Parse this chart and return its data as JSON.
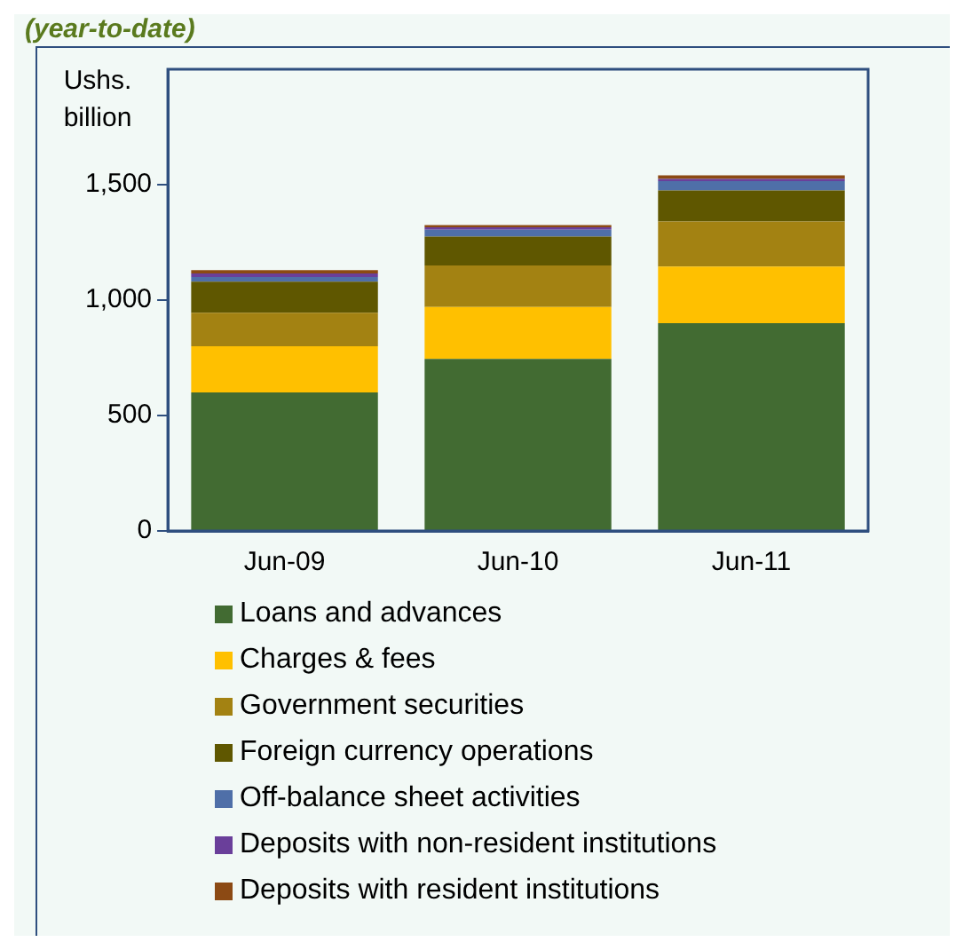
{
  "chart_data": {
    "type": "bar",
    "title": "(year-to-date)",
    "ylabel": "Ushs. billion",
    "categories": [
      "Jun-09",
      "Jun-10",
      "Jun-11"
    ],
    "stacked": true,
    "ylim": [
      0,
      2000
    ],
    "yticks": [
      0,
      {
        "value": 500,
        "label": "500"
      },
      {
        "value": 1000,
        "label": "1,000"
      },
      {
        "value": 1500,
        "label": "1,500"
      }
    ],
    "grid": false,
    "legend": "bottom",
    "series": [
      {
        "name": "Loans and advances",
        "color": "#426b32",
        "values": [
          600,
          745,
          900
        ]
      },
      {
        "name": "Charges & fees",
        "color": "#ffc000",
        "values": [
          200,
          225,
          245
        ]
      },
      {
        "name": "Government securities",
        "color": "#a38212",
        "values": [
          145,
          180,
          195
        ]
      },
      {
        "name": "Foreign currency operations",
        "color": "#5f5700",
        "values": [
          135,
          125,
          135
        ]
      },
      {
        "name": "Off-balance sheet activities",
        "color": "#4f6fa8",
        "values": [
          20,
          30,
          40
        ]
      },
      {
        "name": "Deposits with non-resident institutions",
        "color": "#6a3f9a",
        "values": [
          15,
          10,
          10
        ]
      },
      {
        "name": "Deposits with resident institutions",
        "color": "#8c4a14",
        "values": [
          15,
          10,
          15
        ]
      }
    ]
  }
}
